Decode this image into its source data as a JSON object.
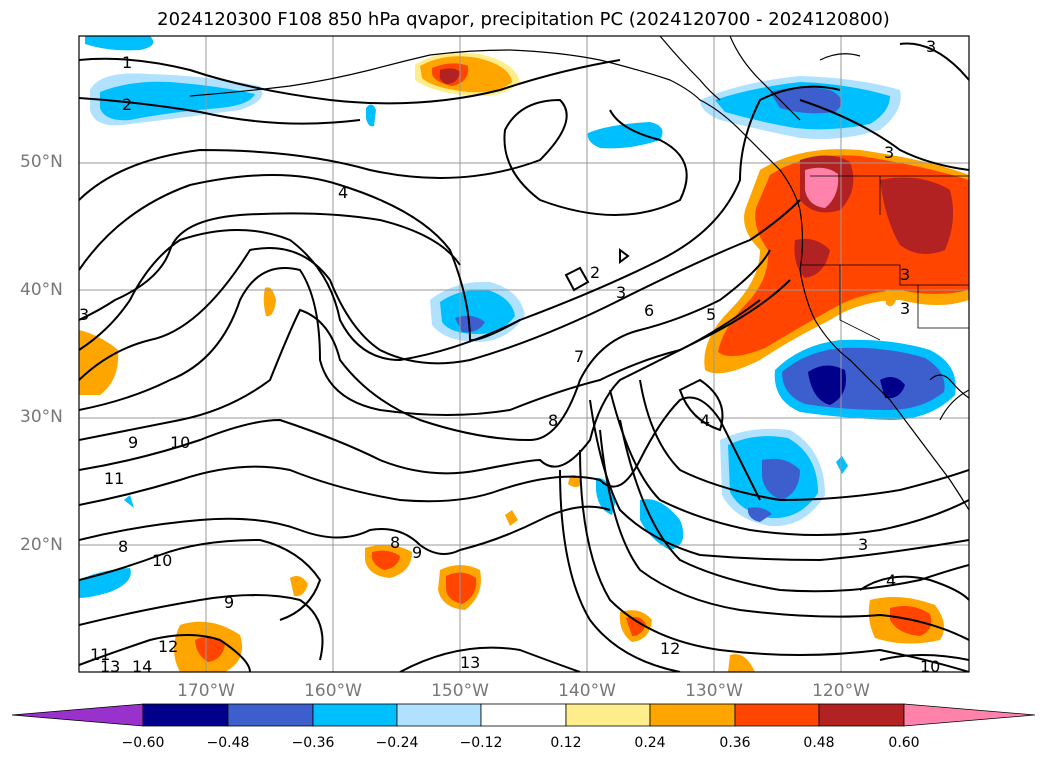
{
  "title": "2024120300 F108 850 hPa qvapor, precipitation PC (2024120700 - 2024120800)",
  "map": {
    "lat_labels": [
      {
        "label": "50°N",
        "lat": 50
      },
      {
        "label": "40°N",
        "lat": 40
      },
      {
        "label": "30°N",
        "lat": 30
      },
      {
        "label": "20°N",
        "lat": 20
      }
    ],
    "lon_labels": [
      {
        "label": "170°W",
        "lon": -170
      },
      {
        "label": "160°W",
        "lon": -160
      },
      {
        "label": "150°W",
        "lon": -150
      },
      {
        "label": "140°W",
        "lon": -140
      },
      {
        "label": "130°W",
        "lon": -130
      },
      {
        "label": "120°W",
        "lon": -120
      }
    ],
    "extent": {
      "lon_min": -180,
      "lon_max": -110,
      "lat_min": 10,
      "lat_max": 60
    },
    "contour_labels": [
      "1",
      "2",
      "4",
      "2",
      "3",
      "6",
      "5",
      "7",
      "3",
      "8",
      "4",
      "9",
      "10",
      "11",
      "8",
      "10",
      "9",
      "9",
      "8",
      "3",
      "4",
      "12",
      "13",
      "12",
      "14",
      "13",
      "11",
      "10",
      "3",
      "3",
      "3",
      "3"
    ]
  },
  "colorbar": {
    "colors": [
      "#9932cc",
      "#00008b",
      "#3c5fcd",
      "#00bfff",
      "#b0e2ff",
      "#ffffff",
      "#ffec8b",
      "#ffa500",
      "#ff4500",
      "#b22222",
      "#ff82ab"
    ],
    "tick_labels": [
      "−0.60",
      "−0.48",
      "−0.36",
      "−0.24",
      "−0.12",
      "0.12",
      "0.24",
      "0.36",
      "0.48",
      "0.60"
    ]
  }
}
